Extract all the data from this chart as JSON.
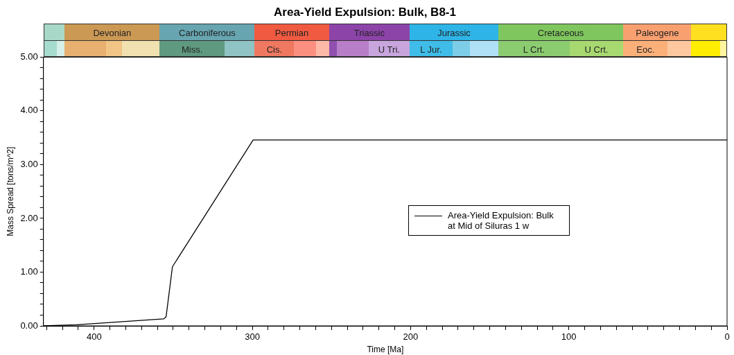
{
  "chart_data": {
    "type": "line",
    "title": "Area-Yield Expulsion: Bulk, B8-1",
    "xlabel": "Time [Ma]",
    "ylabel": "Mass Spread [tons/m^2]",
    "series": [
      {
        "name": "Area-Yield Expulsion: Bulk at Mid of Siluras 1 w",
        "color": "#000000",
        "x": [
          432,
          411,
          356,
          354.5,
          350.5,
          299.5,
          0
        ],
        "values": [
          0,
          0.02,
          0.13,
          0.17,
          1.1,
          3.46,
          3.46
        ]
      }
    ],
    "xlim": [
      432,
      0
    ],
    "xticks": [
      {
        "value": 430,
        "label": null
      },
      {
        "value": 420,
        "label": null
      },
      {
        "value": 410,
        "label": null
      },
      400,
      {
        "value": 390,
        "label": null
      },
      {
        "value": 380,
        "label": null
      },
      {
        "value": 370,
        "label": null
      },
      {
        "value": 360,
        "label": null
      },
      {
        "value": 350,
        "label": null
      },
      {
        "value": 340,
        "label": null
      },
      {
        "value": 330,
        "label": null
      },
      {
        "value": 320,
        "label": null
      },
      {
        "value": 310,
        "label": null
      },
      300,
      {
        "value": 290,
        "label": null
      },
      {
        "value": 280,
        "label": null
      },
      {
        "value": 270,
        "label": null
      },
      {
        "value": 260,
        "label": null
      },
      {
        "value": 250,
        "label": null
      },
      {
        "value": 240,
        "label": null
      },
      {
        "value": 230,
        "label": null
      },
      {
        "value": 220,
        "label": null
      },
      {
        "value": 210,
        "label": null
      },
      200,
      {
        "value": 190,
        "label": null
      },
      {
        "value": 180,
        "label": null
      },
      {
        "value": 170,
        "label": null
      },
      {
        "value": 160,
        "label": null
      },
      {
        "value": 150,
        "label": null
      },
      {
        "value": 140,
        "label": null
      },
      {
        "value": 130,
        "label": null
      },
      {
        "value": 120,
        "label": null
      },
      {
        "value": 110,
        "label": null
      },
      100,
      {
        "value": 90,
        "label": null
      },
      {
        "value": 80,
        "label": null
      },
      {
        "value": 70,
        "label": null
      },
      {
        "value": 60,
        "label": null
      },
      {
        "value": 50,
        "label": null
      },
      {
        "value": 40,
        "label": null
      },
      {
        "value": 30,
        "label": null
      },
      {
        "value": 20,
        "label": null
      },
      {
        "value": 10,
        "label": null
      },
      0
    ],
    "ylim": [
      0,
      5
    ],
    "yticks": [
      {
        "value": 0,
        "label": "0.00"
      },
      {
        "value": 0.2,
        "label": null
      },
      {
        "value": 0.4,
        "label": null
      },
      {
        "value": 0.6,
        "label": null
      },
      {
        "value": 0.8,
        "label": null
      },
      {
        "value": 1,
        "label": "1.00"
      },
      {
        "value": 1.2,
        "label": null
      },
      {
        "value": 1.4,
        "label": null
      },
      {
        "value": 1.6,
        "label": null
      },
      {
        "value": 1.8,
        "label": null
      },
      {
        "value": 2,
        "label": "2.00"
      },
      {
        "value": 2.2,
        "label": null
      },
      {
        "value": 2.4,
        "label": null
      },
      {
        "value": 2.6,
        "label": null
      },
      {
        "value": 2.8,
        "label": null
      },
      {
        "value": 3,
        "label": "3.00"
      },
      {
        "value": 3.2,
        "label": null
      },
      {
        "value": 3.4,
        "label": null
      },
      {
        "value": 3.6,
        "label": null
      },
      {
        "value": 3.8,
        "label": null
      },
      {
        "value": 4,
        "label": "4.00"
      },
      {
        "value": 4.2,
        "label": null
      },
      {
        "value": 4.4,
        "label": null
      },
      {
        "value": 4.6,
        "label": null
      },
      {
        "value": 4.8,
        "label": null
      },
      {
        "value": 5,
        "label": "5.00"
      }
    ],
    "annotations": [
      "Devonian",
      "Carboniferous",
      "Permian",
      "Triassic",
      "Jurassic",
      "Cretaceous",
      "Paleogene",
      "Miss.",
      "Cis.",
      "U Tri.",
      "L Jur.",
      "L Crt.",
      "U Crt.",
      "Eoc."
    ],
    "legend": "right",
    "marker": "none",
    "line_style": "solid",
    "grid": false
  }
}
